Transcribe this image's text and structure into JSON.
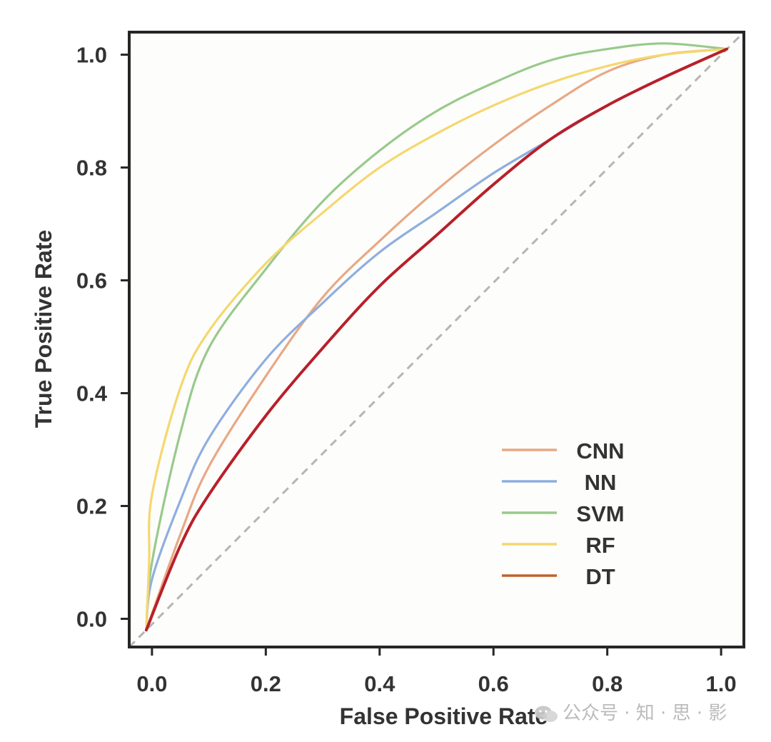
{
  "chart_data": {
    "type": "line",
    "title": "",
    "xlabel": "False Positive Rate",
    "ylabel": "True Positive Rate",
    "xlim": [
      -0.04,
      1.04
    ],
    "ylim": [
      -0.05,
      1.04
    ],
    "xticks": [
      0.0,
      0.2,
      0.4,
      0.6,
      0.8,
      1.0
    ],
    "xtick_labels": [
      "0.0",
      "0.2",
      "0.4",
      "0.6",
      "0.8",
      "1.0"
    ],
    "yticks": [
      0.0,
      0.2,
      0.4,
      0.6,
      0.8,
      1.0
    ],
    "ytick_labels": [
      "0.0",
      "0.2",
      "0.4",
      "0.6",
      "0.8",
      "1.0"
    ],
    "grid": false,
    "legend_position": "bottom-right",
    "reference_line": {
      "style": "dashed",
      "color": "#b5b5b5",
      "x": [
        -0.04,
        1.04
      ],
      "y": [
        -0.05,
        1.04
      ]
    },
    "series": [
      {
        "name": "CNN",
        "color": "#e8a885",
        "x": [
          -0.01,
          0.05,
          0.1,
          0.2,
          0.3,
          0.4,
          0.5,
          0.6,
          0.7,
          0.8,
          0.9,
          1.01
        ],
        "y": [
          -0.02,
          0.15,
          0.27,
          0.43,
          0.57,
          0.67,
          0.76,
          0.84,
          0.91,
          0.97,
          1.0,
          1.01
        ]
      },
      {
        "name": "NN",
        "color": "#8faee0",
        "x": [
          -0.01,
          0.0,
          0.05,
          0.1,
          0.2,
          0.3,
          0.4,
          0.5,
          0.6,
          0.7,
          0.8,
          0.9,
          1.01
        ],
        "y": [
          -0.02,
          0.07,
          0.21,
          0.32,
          0.46,
          0.56,
          0.65,
          0.72,
          0.79,
          0.85,
          0.91,
          0.96,
          1.01
        ]
      },
      {
        "name": "SVM",
        "color": "#99c98c",
        "x": [
          -0.01,
          0.0,
          0.05,
          0.1,
          0.2,
          0.3,
          0.4,
          0.5,
          0.6,
          0.7,
          0.8,
          0.9,
          1.01
        ],
        "y": [
          -0.02,
          0.1,
          0.33,
          0.48,
          0.62,
          0.74,
          0.83,
          0.9,
          0.95,
          0.99,
          1.01,
          1.02,
          1.01
        ]
      },
      {
        "name": "RF",
        "color": "#f5d76e",
        "x": [
          -0.01,
          -0.005,
          0.0,
          0.05,
          0.1,
          0.2,
          0.3,
          0.4,
          0.5,
          0.6,
          0.7,
          0.8,
          0.9,
          1.01
        ],
        "y": [
          -0.02,
          0.1,
          0.22,
          0.41,
          0.51,
          0.63,
          0.72,
          0.8,
          0.86,
          0.91,
          0.95,
          0.98,
          1.0,
          1.01
        ]
      },
      {
        "name": "DT",
        "color": "#b8202a",
        "legend_color": "#c0622d",
        "x": [
          -0.01,
          0.05,
          0.1,
          0.2,
          0.3,
          0.4,
          0.5,
          0.6,
          0.7,
          0.8,
          0.9,
          1.01
        ],
        "y": [
          -0.02,
          0.13,
          0.22,
          0.36,
          0.48,
          0.59,
          0.68,
          0.77,
          0.85,
          0.91,
          0.96,
          1.01
        ]
      }
    ]
  },
  "watermark": {
    "text": "公众号 · 知 · 思 · 影",
    "icon": "wechat-icon"
  }
}
